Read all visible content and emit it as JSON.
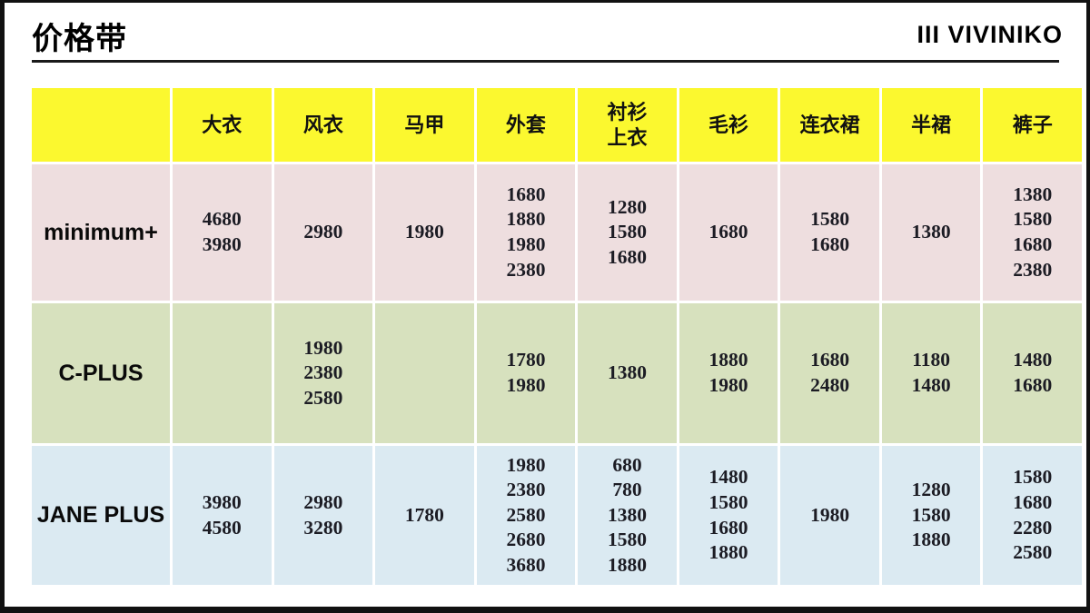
{
  "title": "价格带",
  "logo": "III VIVINIKO",
  "colors": {
    "header_bg": "#FBF82F",
    "row_minimum_bg": "#EEDEDF",
    "row_cplus_bg": "#D7E1BE",
    "row_janeplus_bg": "#DBEAF2",
    "frame": "#111111",
    "text": "#111111"
  },
  "table": {
    "corner_label": "",
    "columns": [
      "大衣",
      "风衣",
      "马甲",
      "外套",
      "衬衫\n上衣",
      "毛衫",
      "连衣裙",
      "半裙",
      "裤子"
    ],
    "rows": [
      {
        "label": "minimum+",
        "bg": "#EEDEDF",
        "cells": [
          [
            "4680",
            "3980"
          ],
          [
            "2980"
          ],
          [
            "1980"
          ],
          [
            "1680",
            "1880",
            "1980",
            "2380"
          ],
          [
            "1280",
            "1580",
            "1680"
          ],
          [
            "1680"
          ],
          [
            "1580",
            "1680"
          ],
          [
            "1380"
          ],
          [
            "1380",
            "1580",
            "1680",
            "2380"
          ]
        ]
      },
      {
        "label": "C-PLUS",
        "bg": "#D7E1BE",
        "cells": [
          [],
          [
            "1980",
            "2380",
            "2580"
          ],
          [],
          [
            "1780",
            "1980"
          ],
          [
            "1380"
          ],
          [
            "1880",
            "1980"
          ],
          [
            "1680",
            "2480"
          ],
          [
            "1180",
            "1480"
          ],
          [
            "1480",
            "1680"
          ]
        ]
      },
      {
        "label": "JANE PLUS",
        "bg": "#DBEAF2",
        "cells": [
          [
            "3980",
            "4580"
          ],
          [
            "2980",
            "3280"
          ],
          [
            "1780"
          ],
          [
            "1980",
            "2380",
            "2580",
            "2680",
            "3680"
          ],
          [
            "680",
            "780",
            "1380",
            "1580",
            "1880"
          ],
          [
            "1480",
            "1580",
            "1680",
            "1880"
          ],
          [
            "1980"
          ],
          [
            "1280",
            "1580",
            "1880"
          ],
          [
            "1580",
            "1680",
            "2280",
            "2580"
          ]
        ]
      }
    ]
  }
}
